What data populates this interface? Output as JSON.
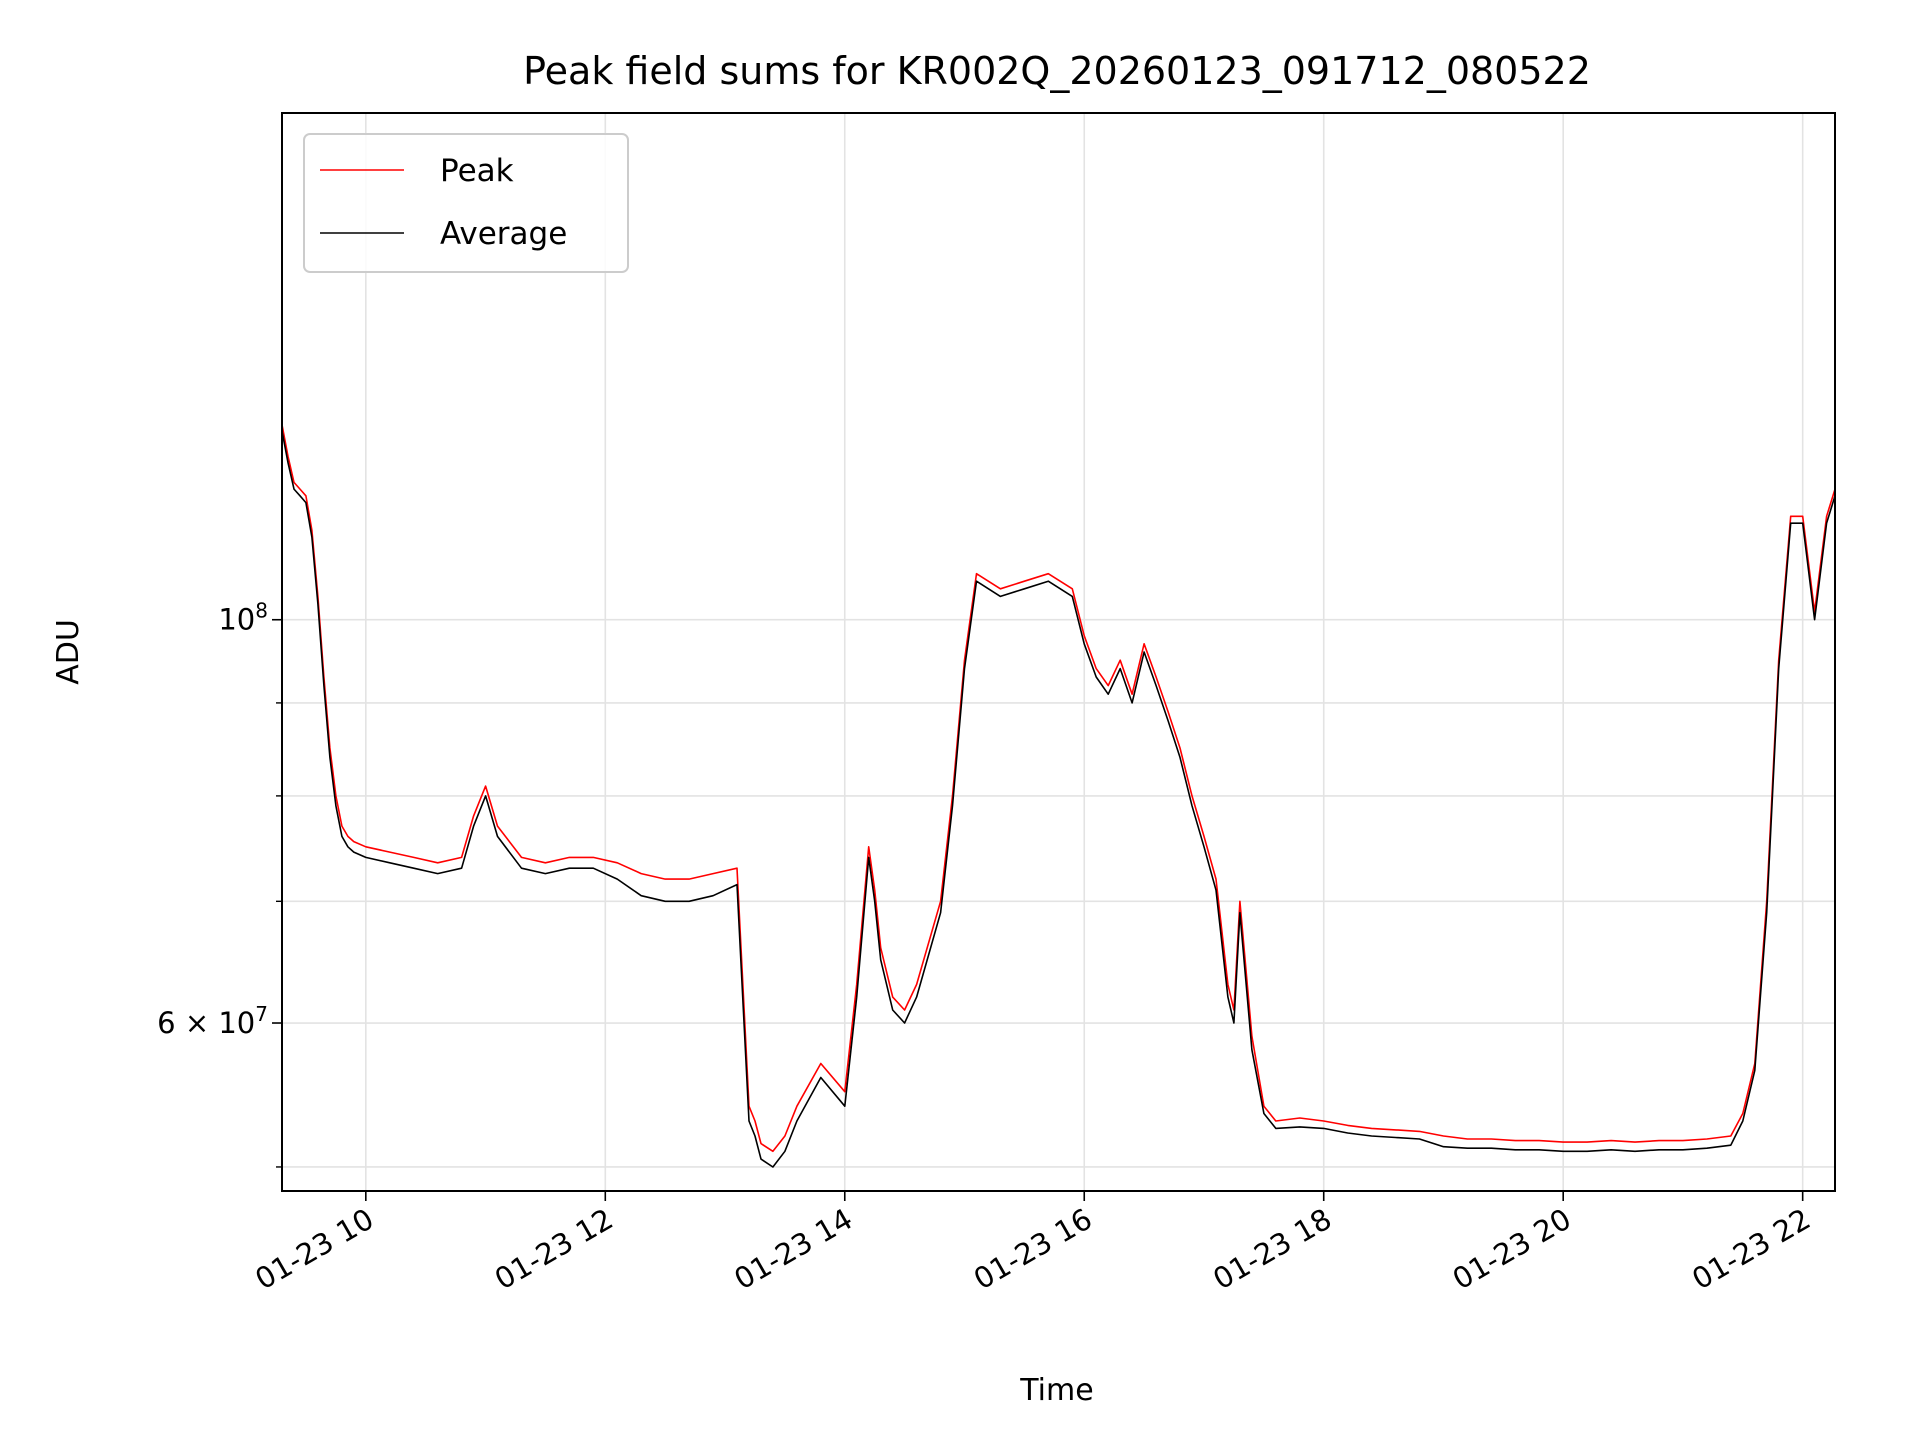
{
  "chart_data": {
    "type": "line",
    "title": "Peak field sums for KR002Q_20260123_091712_080522",
    "xlabel": "Time",
    "ylabel": "ADU",
    "y_scale": "log",
    "grid": true,
    "legend_position": "upper-left",
    "xlim": [
      9.3,
      22.27
    ],
    "ylim": [
      48500000,
      190000000
    ],
    "x_ticks": [
      {
        "value": 10,
        "label": "01-23 10"
      },
      {
        "value": 12,
        "label": "01-23 12"
      },
      {
        "value": 14,
        "label": "01-23 14"
      },
      {
        "value": 16,
        "label": "01-23 16"
      },
      {
        "value": 18,
        "label": "01-23 18"
      },
      {
        "value": 20,
        "label": "01-23 20"
      },
      {
        "value": 22,
        "label": "01-23 22"
      }
    ],
    "y_major_ticks": [
      {
        "value": 100000000,
        "base": "10",
        "exp": "8"
      },
      {
        "value": 60000000,
        "base": "6 × 10",
        "exp": "7"
      }
    ],
    "y_minor_ticks": [
      50000000,
      70000000,
      80000000,
      90000000
    ],
    "x_values_unit": "hour of day (2026-01-23)",
    "series": [
      {
        "name": "Peak",
        "color": "#ff0000",
        "x": [
          9.3,
          9.35,
          9.4,
          9.45,
          9.5,
          9.55,
          9.6,
          9.65,
          9.7,
          9.75,
          9.8,
          9.85,
          9.9,
          10.0,
          10.2,
          10.4,
          10.6,
          10.8,
          10.9,
          11.0,
          11.1,
          11.3,
          11.5,
          11.7,
          11.9,
          12.1,
          12.3,
          12.5,
          12.7,
          12.9,
          13.1,
          13.2,
          13.25,
          13.3,
          13.4,
          13.5,
          13.6,
          13.8,
          14.0,
          14.1,
          14.2,
          14.25,
          14.3,
          14.4,
          14.5,
          14.6,
          14.8,
          14.9,
          15.0,
          15.1,
          15.3,
          15.5,
          15.7,
          15.9,
          16.0,
          16.1,
          16.2,
          16.3,
          16.4,
          16.5,
          16.6,
          16.7,
          16.8,
          16.9,
          17.0,
          17.1,
          17.2,
          17.25,
          17.3,
          17.4,
          17.5,
          17.6,
          17.8,
          18.0,
          18.2,
          18.4,
          18.6,
          18.8,
          19.0,
          19.2,
          19.4,
          19.6,
          19.8,
          20.0,
          20.2,
          20.4,
          20.6,
          20.8,
          21.0,
          21.2,
          21.4,
          21.5,
          21.6,
          21.7,
          21.8,
          21.9,
          22.0,
          22.1,
          22.2,
          22.27
        ],
        "y": [
          128000000,
          123000000,
          119000000,
          118000000,
          117000000,
          112000000,
          103000000,
          93000000,
          85000000,
          80000000,
          77000000,
          76000000,
          75500000,
          75000000,
          74500000,
          74000000,
          73500000,
          74000000,
          78000000,
          81000000,
          77000000,
          74000000,
          73500000,
          74000000,
          74000000,
          73500000,
          72500000,
          72000000,
          72000000,
          72500000,
          73000000,
          54000000,
          53000000,
          51500000,
          51000000,
          52000000,
          54000000,
          57000000,
          55000000,
          63000000,
          75000000,
          71000000,
          66000000,
          62000000,
          61000000,
          63000000,
          70000000,
          80000000,
          95000000,
          106000000,
          104000000,
          105000000,
          106000000,
          104000000,
          98000000,
          94000000,
          92000000,
          95000000,
          91000000,
          97000000,
          93000000,
          89000000,
          85000000,
          80000000,
          76000000,
          72000000,
          63000000,
          61000000,
          70000000,
          59000000,
          54000000,
          53000000,
          53200000,
          53000000,
          52700000,
          52500000,
          52400000,
          52300000,
          52000000,
          51800000,
          51800000,
          51700000,
          51700000,
          51600000,
          51600000,
          51700000,
          51600000,
          51700000,
          51700000,
          51800000,
          52000000,
          53500000,
          57000000,
          70000000,
          95000000,
          114000000,
          114000000,
          101000000,
          114000000,
          118000000
        ]
      },
      {
        "name": "Average",
        "color": "#000000",
        "x": [
          9.3,
          9.35,
          9.4,
          9.45,
          9.5,
          9.55,
          9.6,
          9.65,
          9.7,
          9.75,
          9.8,
          9.85,
          9.9,
          10.0,
          10.2,
          10.4,
          10.6,
          10.8,
          10.9,
          11.0,
          11.1,
          11.3,
          11.5,
          11.7,
          11.9,
          12.1,
          12.3,
          12.5,
          12.7,
          12.9,
          13.1,
          13.2,
          13.25,
          13.3,
          13.4,
          13.5,
          13.6,
          13.8,
          14.0,
          14.1,
          14.2,
          14.25,
          14.3,
          14.4,
          14.5,
          14.6,
          14.8,
          14.9,
          15.0,
          15.1,
          15.3,
          15.5,
          15.7,
          15.9,
          16.0,
          16.1,
          16.2,
          16.3,
          16.4,
          16.5,
          16.6,
          16.7,
          16.8,
          16.9,
          17.0,
          17.1,
          17.2,
          17.25,
          17.3,
          17.4,
          17.5,
          17.6,
          17.8,
          18.0,
          18.2,
          18.4,
          18.6,
          18.8,
          19.0,
          19.2,
          19.4,
          19.6,
          19.8,
          20.0,
          20.2,
          20.4,
          20.6,
          20.8,
          21.0,
          21.2,
          21.4,
          21.5,
          21.6,
          21.7,
          21.8,
          21.9,
          22.0,
          22.1,
          22.2,
          22.27
        ],
        "y": [
          127000000,
          122000000,
          118000000,
          117000000,
          116000000,
          111000000,
          102000000,
          92000000,
          84000000,
          79000000,
          76000000,
          75000000,
          74500000,
          74000000,
          73500000,
          73000000,
          72500000,
          73000000,
          77000000,
          80000000,
          76000000,
          73000000,
          72500000,
          73000000,
          73000000,
          72000000,
          70500000,
          70000000,
          70000000,
          70500000,
          71500000,
          53000000,
          52000000,
          50500000,
          50000000,
          51000000,
          53000000,
          56000000,
          54000000,
          62000000,
          74000000,
          70000000,
          65000000,
          61000000,
          60000000,
          62000000,
          69000000,
          79000000,
          94000000,
          105000000,
          103000000,
          104000000,
          105000000,
          103000000,
          97000000,
          93000000,
          91000000,
          94000000,
          90000000,
          96000000,
          92000000,
          88000000,
          84000000,
          79000000,
          75000000,
          71000000,
          62000000,
          60000000,
          69000000,
          58000000,
          53500000,
          52500000,
          52600000,
          52500000,
          52200000,
          52000000,
          51900000,
          51800000,
          51300000,
          51200000,
          51200000,
          51100000,
          51100000,
          51000000,
          51000000,
          51100000,
          51000000,
          51100000,
          51100000,
          51200000,
          51400000,
          53000000,
          56500000,
          69000000,
          94000000,
          113000000,
          113000000,
          100000000,
          113000000,
          117000000
        ]
      }
    ]
  }
}
